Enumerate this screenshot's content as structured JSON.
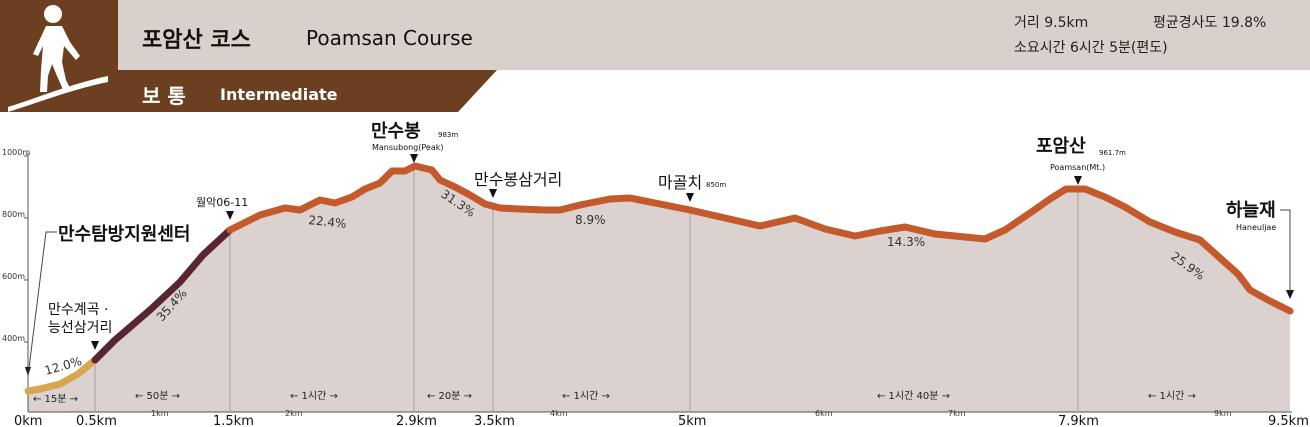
{
  "header": {
    "title_ko": "포암산 코스",
    "title_en": "Poamsan Course",
    "difficulty_ko": "보 통",
    "difficulty_en": "Intermediate",
    "distance": "거리 9.5km",
    "avg_slope": "평균경사도 19.8%",
    "duration": "소요시간 6시간 5분(편도)",
    "icon": "hiker-icon"
  },
  "colors": {
    "brown": "#6b3f20",
    "band": "#d9cfcb",
    "curve_easy": "#d8a551",
    "curve_hard": "#5a2533",
    "curve_main": "#c45a2c",
    "fill": "#dbd1cf"
  },
  "profile": {
    "y_ticks": [
      "1000m",
      "800m",
      "600m",
      "400m"
    ],
    "x_labels_major": [
      "0km",
      "0.5km",
      "1.5km",
      "2.9km",
      "3.5km",
      "5km",
      "7.9km",
      "9.5km"
    ],
    "x_labels_minor": [
      "1km",
      "2km",
      "4km",
      "6km",
      "7km",
      "9km"
    ],
    "durations": [
      "← 15분 →",
      "← 50분 →",
      "← 1시간 →",
      "← 20분 →",
      "← 1시간 →",
      "← 1시간 40분 →",
      "← 1시간 →"
    ],
    "slopes": [
      "12.0%",
      "35.4%",
      "22.4%",
      "31.3%",
      "8.9%",
      "14.3%",
      "25.9%"
    ],
    "places": {
      "mansu_valley_1": "만수계곡 ·",
      "mansu_valley_2": "능선삼거리",
      "center": "만수탐방지원센터",
      "marker": "월악06-11",
      "mansubong": "만수봉",
      "mansubong_height": "983m",
      "mansubong_en": "Mansubong(Peak)",
      "junction": "만수봉삼거리",
      "magolchi": "마골치",
      "magolchi_height": "850m",
      "poamsan": "포암산",
      "poamsan_height": "961.7m",
      "poamsan_en": "Poamsan(Mt.)",
      "haneuljae": "하늘재",
      "haneuljae_en": "Haneuljae"
    }
  }
}
